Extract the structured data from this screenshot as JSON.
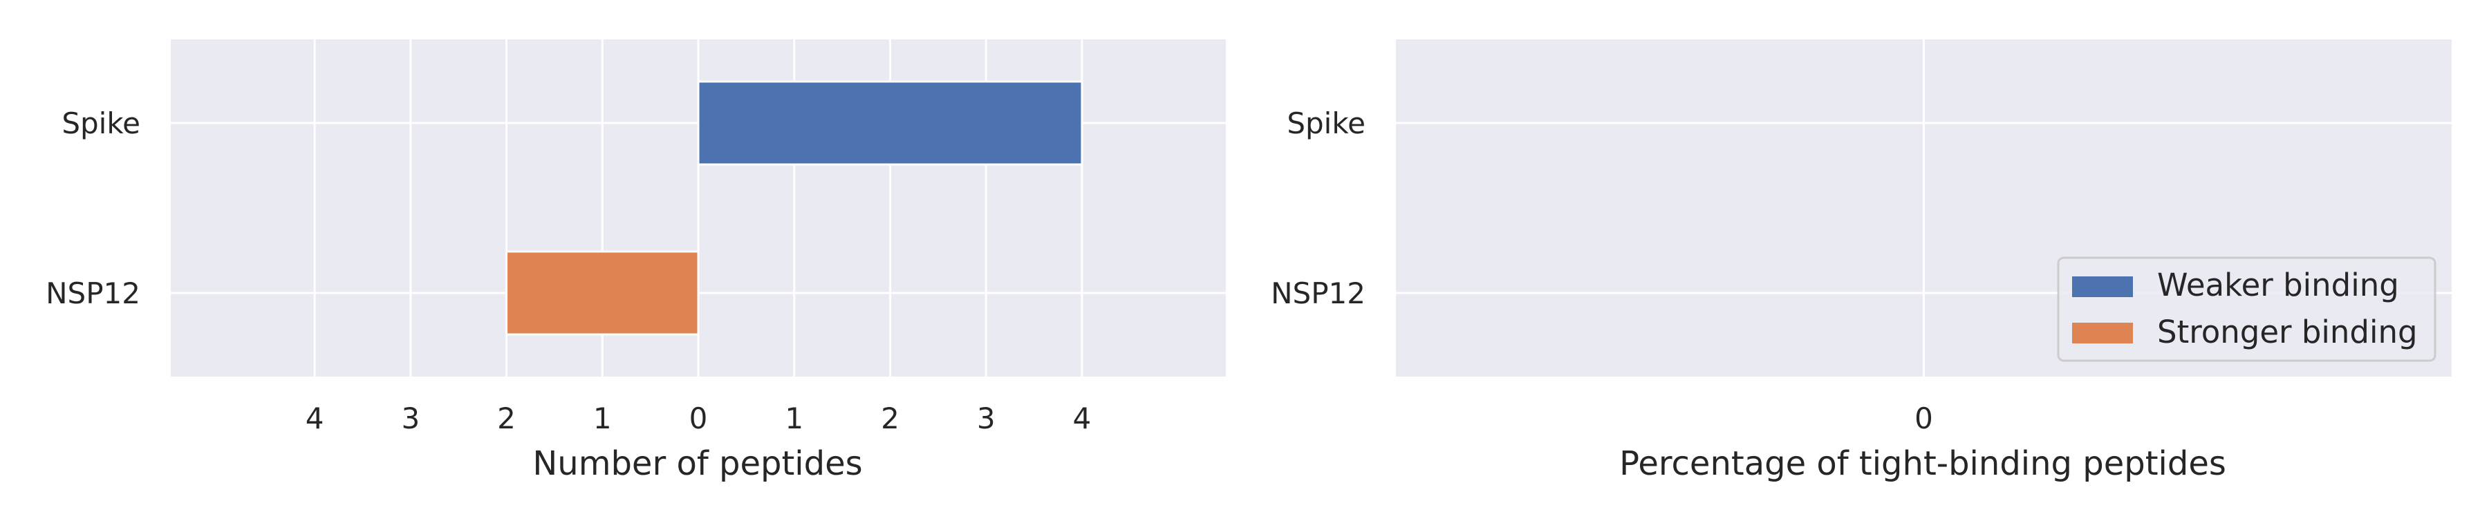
{
  "chart_data": [
    {
      "type": "bar",
      "orientation": "horizontal",
      "diverging": true,
      "categories": [
        "Spike",
        "NSP12"
      ],
      "series": [
        {
          "name": "Weaker binding",
          "values": [
            4,
            0
          ],
          "color": "#4c72b0",
          "direction": "right"
        },
        {
          "name": "Stronger binding",
          "values": [
            0,
            2
          ],
          "color": "#dd8452",
          "direction": "left"
        }
      ],
      "xlabel": "Number of peptides",
      "xlim": [
        -5.5,
        5.5
      ],
      "xticks": [
        -4,
        -3,
        -2,
        -1,
        0,
        1,
        2,
        3,
        4
      ],
      "xtick_labels": [
        "4",
        "3",
        "2",
        "1",
        "0",
        "1",
        "2",
        "3",
        "4"
      ],
      "grid": true,
      "background": "#eaeaf2"
    },
    {
      "type": "bar",
      "orientation": "horizontal",
      "categories": [
        "Spike",
        "NSP12"
      ],
      "series": [
        {
          "name": "Weaker binding",
          "values": [
            0,
            0
          ],
          "color": "#4c72b0"
        },
        {
          "name": "Stronger binding",
          "values": [
            0,
            0
          ],
          "color": "#dd8452"
        }
      ],
      "xlabel": "Percentage of tight-binding peptides",
      "xticks": [
        0
      ],
      "xtick_labels": [
        "0"
      ],
      "grid": true,
      "background": "#eaeaf2",
      "legend": {
        "placement": "lower-right",
        "entries": [
          "Weaker binding",
          "Stronger binding"
        ]
      }
    }
  ]
}
